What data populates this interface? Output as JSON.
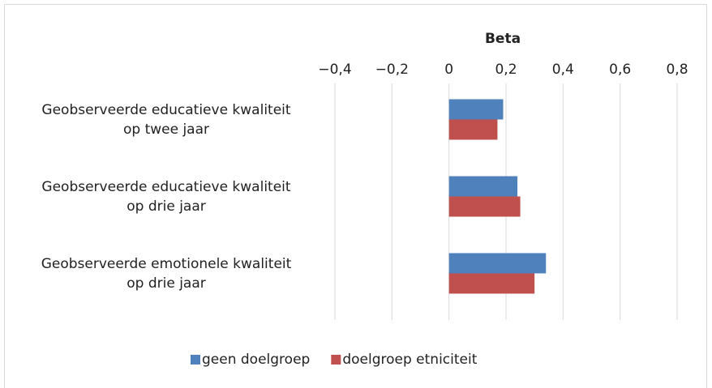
{
  "chart_data": {
    "type": "hbar",
    "xlabel": "Beta",
    "categories": [
      "Geobserveerde educatieve kwaliteit\nop twee jaar",
      "Geobserveerde educatieve kwaliteit\nop drie jaar",
      "Geobserveerde emotionele kwaliteit\nop drie jaar"
    ],
    "series": [
      {
        "name": "geen doelgroep",
        "color": "#4f81bd",
        "values": [
          0.19,
          0.24,
          0.34
        ]
      },
      {
        "name": "doelgroep etniciteit",
        "color": "#c0504d",
        "values": [
          0.17,
          0.25,
          0.3
        ]
      }
    ],
    "xlim": [
      -0.4,
      0.8
    ],
    "xticks": [
      {
        "value": -0.4,
        "label": "−0,4"
      },
      {
        "value": -0.2,
        "label": "−0,2"
      },
      0,
      {
        "value": 0.2,
        "label": "0,2"
      },
      {
        "value": 0.4,
        "label": "0,4"
      },
      {
        "value": 0.6,
        "label": "0,6"
      },
      {
        "value": 0.8,
        "label": "0,8"
      }
    ],
    "grid": true,
    "legend": "bottom"
  }
}
